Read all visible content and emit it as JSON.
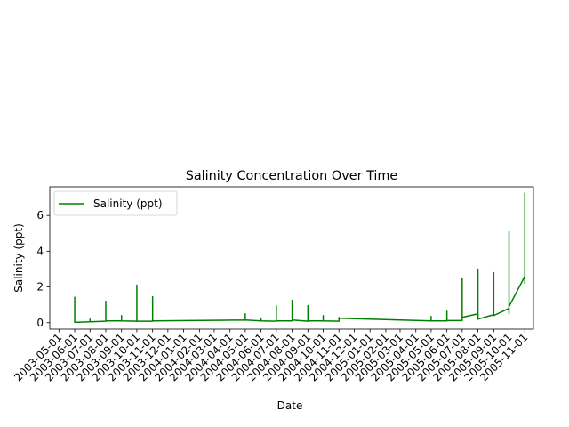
{
  "chart_data": {
    "type": "line",
    "title": "Salinity Concentration Over Time",
    "xlabel": "Date",
    "ylabel": "Salinity (ppt)",
    "xlim": [
      "2003-04-13",
      "2005-11-18"
    ],
    "ylim": [
      -0.36,
      7.6
    ],
    "grid": false,
    "legend": {
      "position": "top-left",
      "entries": [
        "Salinity (ppt)"
      ]
    },
    "x_ticks": [
      "2003-05-01",
      "2003-06-01",
      "2003-07-01",
      "2003-08-01",
      "2003-09-01",
      "2003-10-01",
      "2003-11-01",
      "2003-12-01",
      "2004-01-01",
      "2004-02-01",
      "2004-03-01",
      "2004-04-01",
      "2004-05-01",
      "2004-06-01",
      "2004-07-01",
      "2004-08-01",
      "2004-09-01",
      "2004-10-01",
      "2004-11-01",
      "2004-12-01",
      "2005-01-01",
      "2005-02-01",
      "2005-03-01",
      "2005-04-01",
      "2005-05-01",
      "2005-06-01",
      "2005-07-01",
      "2005-08-01",
      "2005-09-01",
      "2005-10-01",
      "2005-11-01"
    ],
    "y_ticks": [
      0,
      2,
      4,
      6
    ],
    "series": [
      {
        "name": "Salinity (ppt)",
        "color": "#008000",
        "points": [
          [
            "2003-06-01",
            1.45
          ],
          [
            "2003-06-01",
            0.02
          ],
          [
            "2003-07-01",
            0.05
          ],
          [
            "2003-07-01",
            0.2
          ],
          [
            "2003-07-01",
            0.05
          ],
          [
            "2003-08-01",
            0.08
          ],
          [
            "2003-08-01",
            1.2
          ],
          [
            "2003-08-01",
            0.1
          ],
          [
            "2003-09-01",
            0.1
          ],
          [
            "2003-09-01",
            0.4
          ],
          [
            "2003-09-01",
            0.1
          ],
          [
            "2003-10-01",
            0.08
          ],
          [
            "2003-10-01",
            2.1
          ],
          [
            "2003-10-01",
            0.08
          ],
          [
            "2003-11-01",
            0.08
          ],
          [
            "2003-11-01",
            1.45
          ],
          [
            "2003-11-01",
            0.1
          ],
          [
            "2004-05-01",
            0.15
          ],
          [
            "2004-05-01",
            0.5
          ],
          [
            "2004-05-01",
            0.15
          ],
          [
            "2004-06-01",
            0.1
          ],
          [
            "2004-06-01",
            0.25
          ],
          [
            "2004-06-01",
            0.1
          ],
          [
            "2004-07-01",
            0.08
          ],
          [
            "2004-07-01",
            0.95
          ],
          [
            "2004-07-01",
            0.1
          ],
          [
            "2004-08-01",
            0.1
          ],
          [
            "2004-08-01",
            1.25
          ],
          [
            "2004-08-01",
            0.15
          ],
          [
            "2004-09-01",
            0.08
          ],
          [
            "2004-09-01",
            0.95
          ],
          [
            "2004-09-01",
            0.1
          ],
          [
            "2004-10-01",
            0.1
          ],
          [
            "2004-10-01",
            0.4
          ],
          [
            "2004-10-01",
            0.1
          ],
          [
            "2004-11-01",
            0.08
          ],
          [
            "2004-11-01",
            0.3
          ],
          [
            "2004-11-01",
            0.25
          ],
          [
            "2005-05-01",
            0.1
          ],
          [
            "2005-05-01",
            0.35
          ],
          [
            "2005-05-01",
            0.1
          ],
          [
            "2005-06-01",
            0.1
          ],
          [
            "2005-06-01",
            0.65
          ],
          [
            "2005-06-01",
            0.12
          ],
          [
            "2005-07-01",
            0.12
          ],
          [
            "2005-07-01",
            2.5
          ],
          [
            "2005-07-01",
            0.3
          ],
          [
            "2005-08-01",
            0.5
          ],
          [
            "2005-08-01",
            3.0
          ],
          [
            "2005-08-01",
            0.2
          ],
          [
            "2005-09-01",
            0.45
          ],
          [
            "2005-09-01",
            2.8
          ],
          [
            "2005-09-01",
            0.4
          ],
          [
            "2005-10-01",
            0.8
          ],
          [
            "2005-10-01",
            5.1
          ],
          [
            "2005-10-01",
            0.5
          ],
          [
            "2005-10-01",
            2.9
          ],
          [
            "2005-10-01",
            0.9
          ],
          [
            "2005-11-01",
            2.6
          ],
          [
            "2005-11-01",
            7.25
          ],
          [
            "2005-11-01",
            2.2
          ],
          [
            "2005-11-01",
            3.0
          ]
        ]
      }
    ]
  }
}
